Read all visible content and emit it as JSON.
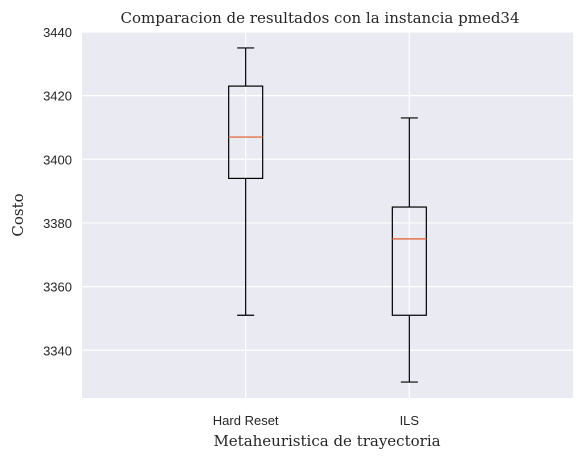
{
  "chart_data": {
    "type": "box",
    "title": "Comparacion de resultados con la instancia pmed34",
    "xlabel": "Metaheuristica de trayectoria",
    "ylabel": "Costo",
    "categories": [
      "Hard Reset",
      "ILS"
    ],
    "boxes": [
      {
        "name": "Hard Reset",
        "min": 3351,
        "q1": 3394,
        "median": 3407,
        "q3": 3423,
        "max": 3435
      },
      {
        "name": "ILS",
        "min": 3330,
        "q1": 3351,
        "median": 3375,
        "q3": 3385,
        "max": 3413
      }
    ],
    "ylim": [
      3325,
      3440
    ],
    "yticks": [
      3340,
      3360,
      3380,
      3400,
      3420,
      3440
    ],
    "grid": true,
    "legend": "none"
  },
  "colors": {
    "plot_background": "#EAEAF2",
    "grid": "#FFFFFF",
    "box_edge": "#000000",
    "median": "#E5734A",
    "text": "#262626"
  }
}
